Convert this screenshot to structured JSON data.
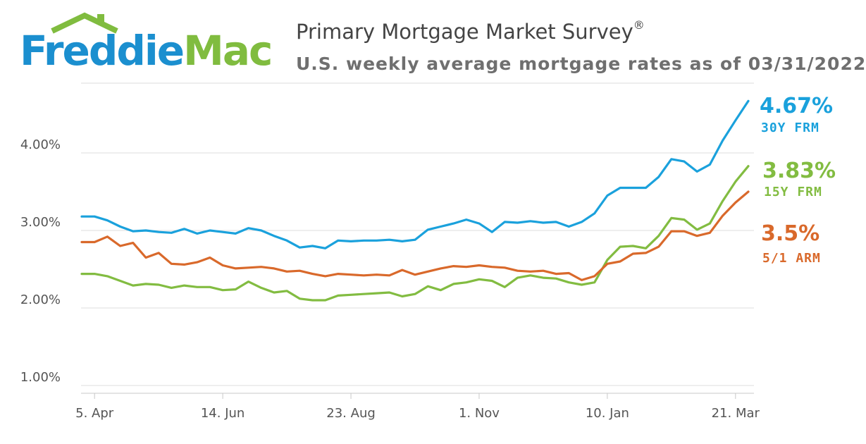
{
  "brand": {
    "name_part1": "Freddie",
    "name_part2": "Mac"
  },
  "header": {
    "title": "Primary Mortgage Market Survey",
    "title_mark": "®",
    "subtitle": "U.S. weekly average mortgage rates as of 03/31/2022"
  },
  "colors": {
    "frm30": "#1aa1dc",
    "frm15": "#82bc41",
    "arm51": "#d9692b",
    "grid": "#dedede"
  },
  "chart_data": {
    "type": "line",
    "title": "Primary Mortgage Market Survey",
    "subtitle": "U.S. weekly average mortgage rates as of 03/31/2022",
    "ylim": [
      0.9,
      4.9
    ],
    "yticks": [
      1.0,
      2.0,
      3.0,
      4.0
    ],
    "ytick_labels": [
      "1.00%",
      "2.00%",
      "3.00%",
      "4.00%"
    ],
    "grid": true,
    "xtick_labels": [
      "5. Apr",
      "14. Jun",
      "23. Aug",
      "1. Nov",
      "10. Jan",
      "21. Mar"
    ],
    "xtick_week_index": [
      1,
      11,
      21,
      31,
      41,
      51
    ],
    "series": [
      {
        "name": "30Y FRM",
        "end_label": "4.67%",
        "color": "#1aa1dc",
        "values": [
          3.18,
          3.18,
          3.13,
          3.05,
          2.99,
          3.0,
          2.98,
          2.97,
          3.02,
          2.96,
          3.0,
          2.98,
          2.96,
          3.03,
          3.0,
          2.93,
          2.87,
          2.78,
          2.8,
          2.77,
          2.87,
          2.86,
          2.87,
          2.87,
          2.88,
          2.86,
          2.88,
          3.01,
          3.05,
          3.09,
          3.14,
          3.09,
          2.98,
          3.11,
          3.1,
          3.12,
          3.1,
          3.11,
          3.05,
          3.11,
          3.22,
          3.45,
          3.55,
          3.55,
          3.55,
          3.69,
          3.92,
          3.89,
          3.76,
          3.85,
          4.16,
          4.42,
          4.67
        ]
      },
      {
        "name": "15Y FRM",
        "end_label": "3.83%",
        "color": "#82bc41",
        "values": [
          2.44,
          2.44,
          2.41,
          2.35,
          2.29,
          2.31,
          2.3,
          2.26,
          2.29,
          2.27,
          2.27,
          2.23,
          2.24,
          2.34,
          2.26,
          2.2,
          2.22,
          2.12,
          2.1,
          2.1,
          2.16,
          2.17,
          2.18,
          2.19,
          2.2,
          2.15,
          2.18,
          2.28,
          2.23,
          2.31,
          2.33,
          2.37,
          2.35,
          2.27,
          2.39,
          2.42,
          2.39,
          2.38,
          2.33,
          2.3,
          2.33,
          2.62,
          2.79,
          2.8,
          2.77,
          2.93,
          3.16,
          3.14,
          3.01,
          3.09,
          3.38,
          3.63,
          3.83
        ]
      },
      {
        "name": "5/1 ARM",
        "end_label": "3.5%",
        "color": "#d9692b",
        "values": [
          2.85,
          2.85,
          2.92,
          2.8,
          2.84,
          2.65,
          2.71,
          2.57,
          2.56,
          2.59,
          2.65,
          2.55,
          2.51,
          2.52,
          2.53,
          2.51,
          2.47,
          2.48,
          2.44,
          2.41,
          2.44,
          2.43,
          2.42,
          2.43,
          2.42,
          2.49,
          2.43,
          2.47,
          2.51,
          2.54,
          2.53,
          2.55,
          2.53,
          2.52,
          2.48,
          2.47,
          2.48,
          2.44,
          2.45,
          2.36,
          2.41,
          2.57,
          2.6,
          2.7,
          2.71,
          2.79,
          2.99,
          2.99,
          2.93,
          2.97,
          3.19,
          3.36,
          3.5
        ]
      }
    ]
  }
}
